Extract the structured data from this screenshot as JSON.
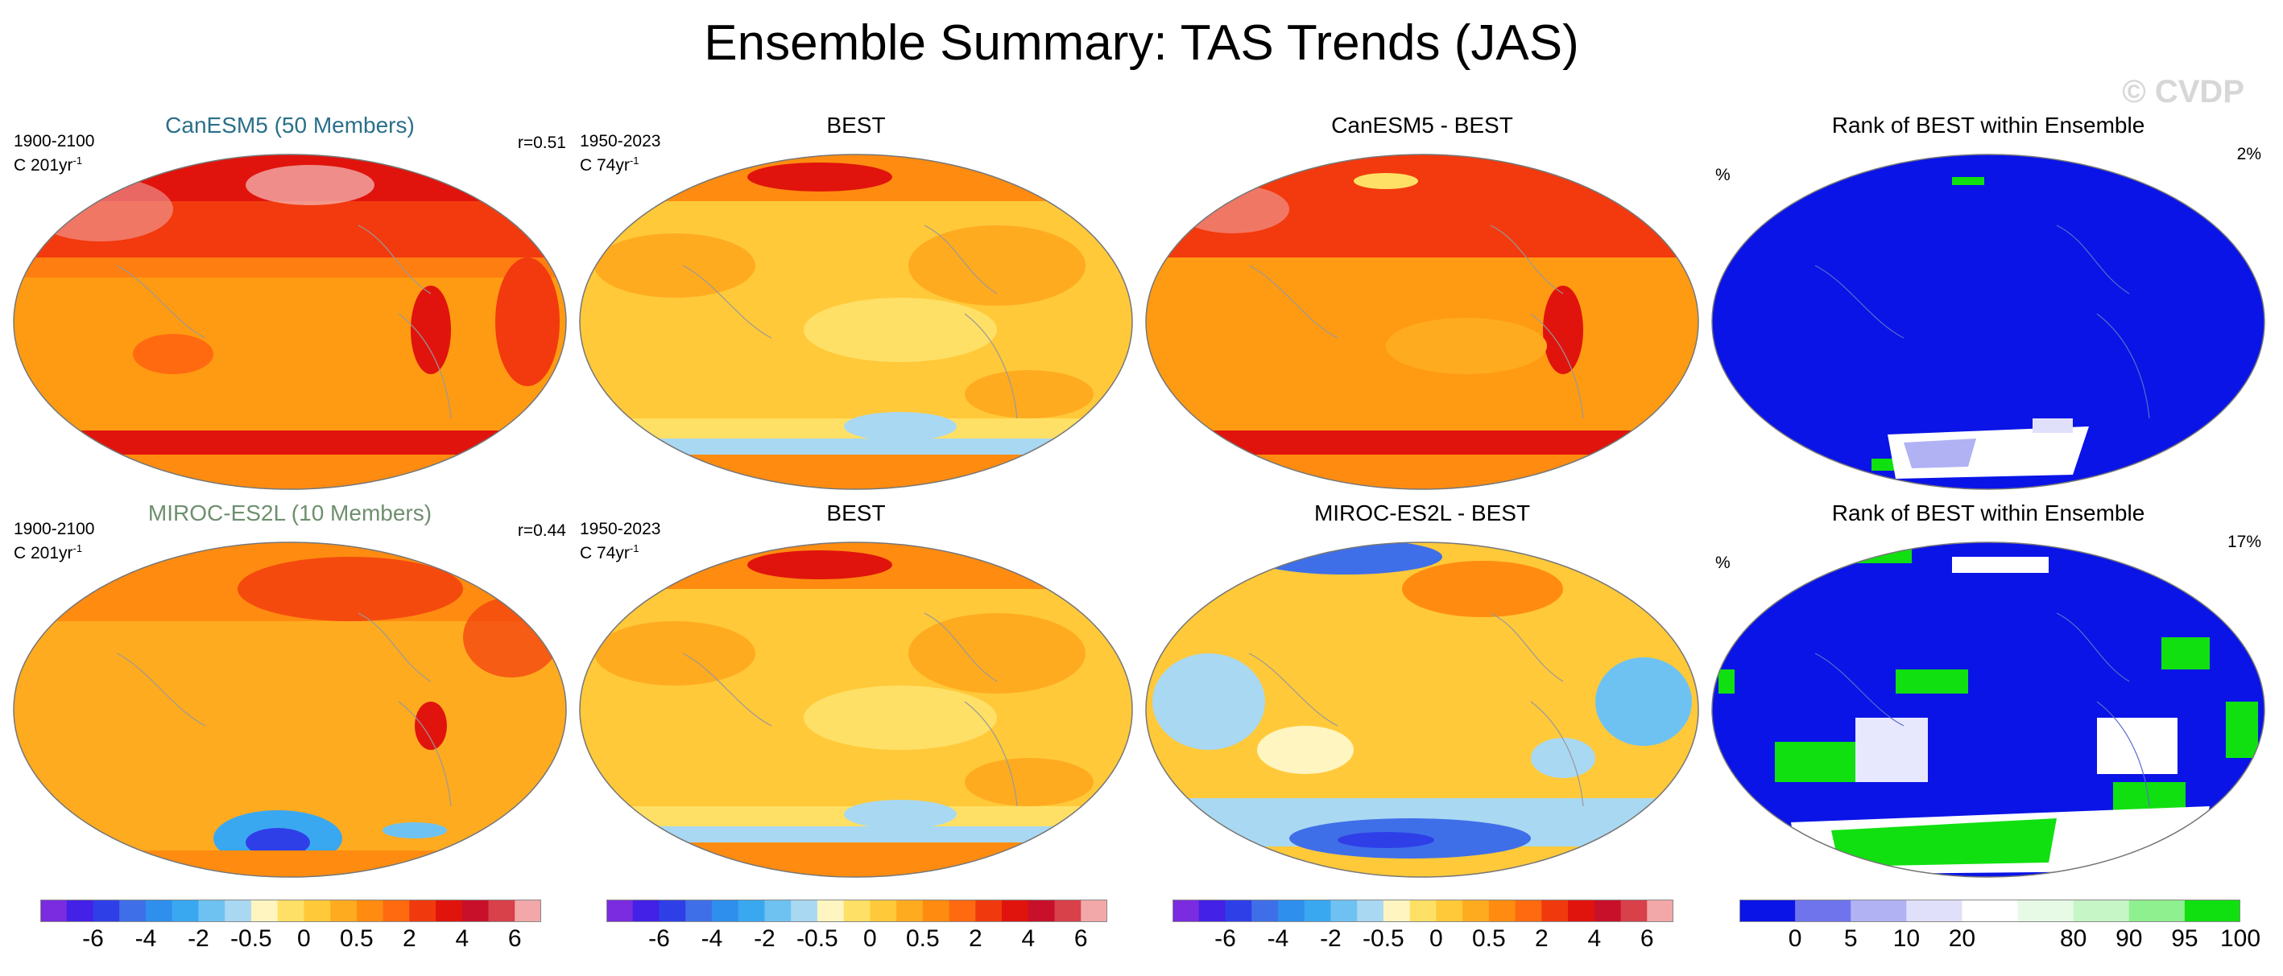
{
  "title": "Ensemble Summary: TAS Trends (JAS)",
  "watermark": "© CVDP",
  "rows": [
    {
      "model_title": "CanESM5 (50 Members)",
      "model_period": "1900-2100",
      "model_units": "C 201yr",
      "model_units_exp": "-1",
      "model_r": "r=0.51",
      "obs_title": "BEST",
      "obs_period": "1950-2023",
      "obs_units": "C 74yr",
      "obs_units_exp": "-1",
      "diff_title": "CanESM5 - BEST",
      "rank_title": "Rank of BEST within Ensemble",
      "rank_unit": "%",
      "rank_pct": "2%"
    },
    {
      "model_title": "MIROC-ES2L (10 Members)",
      "model_period": "1900-2100",
      "model_units": "C 201yr",
      "model_units_exp": "-1",
      "model_r": "r=0.44",
      "obs_title": "BEST",
      "obs_period": "1950-2023",
      "obs_units": "C 74yr",
      "obs_units_exp": "-1",
      "diff_title": "MIROC-ES2L - BEST",
      "rank_title": "Rank of BEST within Ensemble",
      "rank_unit": "%",
      "rank_pct": "17%"
    }
  ],
  "colorbars": {
    "trend": {
      "colors": [
        "#7b2be0",
        "#4421e6",
        "#2f3fe8",
        "#3f6fe8",
        "#2f8fec",
        "#3aa8f0",
        "#6ec2f2",
        "#a9d8f2",
        "#fff5c0",
        "#ffe066",
        "#ffc93a",
        "#ffab20",
        "#ff8c10",
        "#ff6a10",
        "#f03a0e",
        "#e0140c",
        "#c8102a",
        "#d8404a",
        "#f2a8a8"
      ],
      "ticks": [
        "-6",
        "-4",
        "-2",
        "-0.5",
        "0",
        "0.5",
        "2",
        "4",
        "6"
      ],
      "tick_positions": [
        2,
        4,
        6,
        8,
        10,
        12,
        14,
        16,
        18
      ]
    },
    "rank": {
      "colors": [
        "#0a14e6",
        "#6f74ec",
        "#b0b2f4",
        "#e0e0fa",
        "#ffffff",
        "#e6fae6",
        "#c6f6c6",
        "#8ef08e",
        "#10e010"
      ],
      "ticks": [
        "0",
        "5",
        "10",
        "20",
        "80",
        "90",
        "95",
        "100"
      ],
      "tick_positions": [
        1,
        2,
        3,
        4,
        6,
        7,
        8,
        9
      ]
    }
  },
  "chart_data": [
    {
      "type": "heatmap",
      "title": "CanESM5 (50 Members)",
      "period": "1900-2100",
      "units": "C 201yr-1",
      "correlation": "r=0.51",
      "field_description_levels": "warm throughout, strongest Arctic"
    },
    {
      "type": "heatmap",
      "title": "BEST",
      "period": "1950-2023",
      "units": "C 74yr-1"
    },
    {
      "type": "heatmap",
      "title": "CanESM5 - BEST"
    },
    {
      "type": "heatmap",
      "title": "Rank of BEST within Ensemble",
      "unit": "%",
      "value": "2%"
    },
    {
      "type": "heatmap",
      "title": "MIROC-ES2L (10 Members)",
      "period": "1900-2100",
      "units": "C 201yr-1",
      "correlation": "r=0.44"
    },
    {
      "type": "heatmap",
      "title": "BEST",
      "period": "1950-2023",
      "units": "C 74yr-1"
    },
    {
      "type": "heatmap",
      "title": "MIROC-ES2L - BEST"
    },
    {
      "type": "heatmap",
      "title": "Rank of BEST within Ensemble",
      "unit": "%",
      "value": "17%"
    }
  ]
}
